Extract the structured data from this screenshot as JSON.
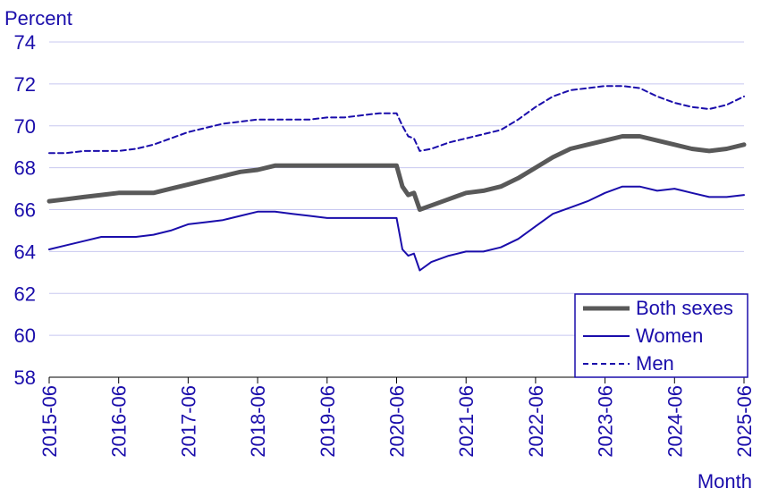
{
  "chart_data": {
    "type": "line",
    "ylabel": "Percent",
    "xlabel": "Month",
    "ylim": [
      58,
      74
    ],
    "yticks": [
      58,
      60,
      62,
      64,
      66,
      68,
      70,
      72,
      74
    ],
    "xticks": [
      "2015-06",
      "2016-06",
      "2017-06",
      "2018-06",
      "2019-06",
      "2020-06",
      "2021-06",
      "2022-06",
      "2023-06",
      "2024-06",
      "2025-06"
    ],
    "x_start": "2015-06",
    "x_end": "2025-06",
    "grid": "horizontal",
    "legend_position": "bottom-right",
    "colors": {
      "axis_text": "#1a0dab",
      "grid": "#c8c8f0",
      "axis_line": "#000000"
    },
    "series": [
      {
        "name": "Both sexes",
        "color": "#595959",
        "style": "thick",
        "points": [
          [
            "2015-06",
            66.4
          ],
          [
            "2015-09",
            66.5
          ],
          [
            "2015-12",
            66.6
          ],
          [
            "2016-03",
            66.7
          ],
          [
            "2016-06",
            66.8
          ],
          [
            "2016-09",
            66.8
          ],
          [
            "2016-12",
            66.8
          ],
          [
            "2017-03",
            67.0
          ],
          [
            "2017-06",
            67.2
          ],
          [
            "2017-09",
            67.4
          ],
          [
            "2017-12",
            67.6
          ],
          [
            "2018-03",
            67.8
          ],
          [
            "2018-06",
            67.9
          ],
          [
            "2018-09",
            68.1
          ],
          [
            "2018-12",
            68.1
          ],
          [
            "2019-03",
            68.1
          ],
          [
            "2019-06",
            68.1
          ],
          [
            "2019-09",
            68.1
          ],
          [
            "2019-12",
            68.1
          ],
          [
            "2020-03",
            68.1
          ],
          [
            "2020-06",
            68.1
          ],
          [
            "2020-07",
            67.1
          ],
          [
            "2020-08",
            66.7
          ],
          [
            "2020-09",
            66.8
          ],
          [
            "2020-10",
            66.0
          ],
          [
            "2020-12",
            66.2
          ],
          [
            "2021-03",
            66.5
          ],
          [
            "2021-06",
            66.8
          ],
          [
            "2021-09",
            66.9
          ],
          [
            "2021-12",
            67.1
          ],
          [
            "2022-03",
            67.5
          ],
          [
            "2022-06",
            68.0
          ],
          [
            "2022-09",
            68.5
          ],
          [
            "2022-12",
            68.9
          ],
          [
            "2023-03",
            69.1
          ],
          [
            "2023-06",
            69.3
          ],
          [
            "2023-09",
            69.5
          ],
          [
            "2023-12",
            69.5
          ],
          [
            "2024-03",
            69.3
          ],
          [
            "2024-06",
            69.1
          ],
          [
            "2024-09",
            68.9
          ],
          [
            "2024-12",
            68.8
          ],
          [
            "2025-03",
            68.9
          ],
          [
            "2025-06",
            69.1
          ]
        ]
      },
      {
        "name": "Women",
        "color": "#1a0dab",
        "style": "solid",
        "points": [
          [
            "2015-06",
            64.1
          ],
          [
            "2015-09",
            64.3
          ],
          [
            "2015-12",
            64.5
          ],
          [
            "2016-03",
            64.7
          ],
          [
            "2016-06",
            64.7
          ],
          [
            "2016-09",
            64.7
          ],
          [
            "2016-12",
            64.8
          ],
          [
            "2017-03",
            65.0
          ],
          [
            "2017-06",
            65.3
          ],
          [
            "2017-09",
            65.4
          ],
          [
            "2017-12",
            65.5
          ],
          [
            "2018-03",
            65.7
          ],
          [
            "2018-06",
            65.9
          ],
          [
            "2018-09",
            65.9
          ],
          [
            "2018-12",
            65.8
          ],
          [
            "2019-03",
            65.7
          ],
          [
            "2019-06",
            65.6
          ],
          [
            "2019-09",
            65.6
          ],
          [
            "2019-12",
            65.6
          ],
          [
            "2020-03",
            65.6
          ],
          [
            "2020-06",
            65.6
          ],
          [
            "2020-07",
            64.1
          ],
          [
            "2020-08",
            63.8
          ],
          [
            "2020-09",
            63.9
          ],
          [
            "2020-10",
            63.1
          ],
          [
            "2020-12",
            63.5
          ],
          [
            "2021-03",
            63.8
          ],
          [
            "2021-06",
            64.0
          ],
          [
            "2021-09",
            64.0
          ],
          [
            "2021-12",
            64.2
          ],
          [
            "2022-03",
            64.6
          ],
          [
            "2022-06",
            65.2
          ],
          [
            "2022-09",
            65.8
          ],
          [
            "2022-12",
            66.1
          ],
          [
            "2023-03",
            66.4
          ],
          [
            "2023-06",
            66.8
          ],
          [
            "2023-09",
            67.1
          ],
          [
            "2023-12",
            67.1
          ],
          [
            "2024-03",
            66.9
          ],
          [
            "2024-06",
            67.0
          ],
          [
            "2024-09",
            66.8
          ],
          [
            "2024-12",
            66.6
          ],
          [
            "2025-03",
            66.6
          ],
          [
            "2025-06",
            66.7
          ]
        ]
      },
      {
        "name": "Men",
        "color": "#1a0dab",
        "style": "dashed",
        "points": [
          [
            "2015-06",
            68.7
          ],
          [
            "2015-09",
            68.7
          ],
          [
            "2015-12",
            68.8
          ],
          [
            "2016-03",
            68.8
          ],
          [
            "2016-06",
            68.8
          ],
          [
            "2016-09",
            68.9
          ],
          [
            "2016-12",
            69.1
          ],
          [
            "2017-03",
            69.4
          ],
          [
            "2017-06",
            69.7
          ],
          [
            "2017-09",
            69.9
          ],
          [
            "2017-12",
            70.1
          ],
          [
            "2018-03",
            70.2
          ],
          [
            "2018-06",
            70.3
          ],
          [
            "2018-09",
            70.3
          ],
          [
            "2018-12",
            70.3
          ],
          [
            "2019-03",
            70.3
          ],
          [
            "2019-06",
            70.4
          ],
          [
            "2019-09",
            70.4
          ],
          [
            "2019-12",
            70.5
          ],
          [
            "2020-03",
            70.6
          ],
          [
            "2020-06",
            70.6
          ],
          [
            "2020-07",
            70.0
          ],
          [
            "2020-08",
            69.5
          ],
          [
            "2020-09",
            69.4
          ],
          [
            "2020-10",
            68.8
          ],
          [
            "2020-12",
            68.9
          ],
          [
            "2021-03",
            69.2
          ],
          [
            "2021-06",
            69.4
          ],
          [
            "2021-09",
            69.6
          ],
          [
            "2021-12",
            69.8
          ],
          [
            "2022-03",
            70.3
          ],
          [
            "2022-06",
            70.9
          ],
          [
            "2022-09",
            71.4
          ],
          [
            "2022-12",
            71.7
          ],
          [
            "2023-03",
            71.8
          ],
          [
            "2023-06",
            71.9
          ],
          [
            "2023-09",
            71.9
          ],
          [
            "2023-12",
            71.8
          ],
          [
            "2024-03",
            71.4
          ],
          [
            "2024-06",
            71.1
          ],
          [
            "2024-09",
            70.9
          ],
          [
            "2024-12",
            70.8
          ],
          [
            "2025-03",
            71.0
          ],
          [
            "2025-06",
            71.4
          ]
        ]
      }
    ]
  }
}
